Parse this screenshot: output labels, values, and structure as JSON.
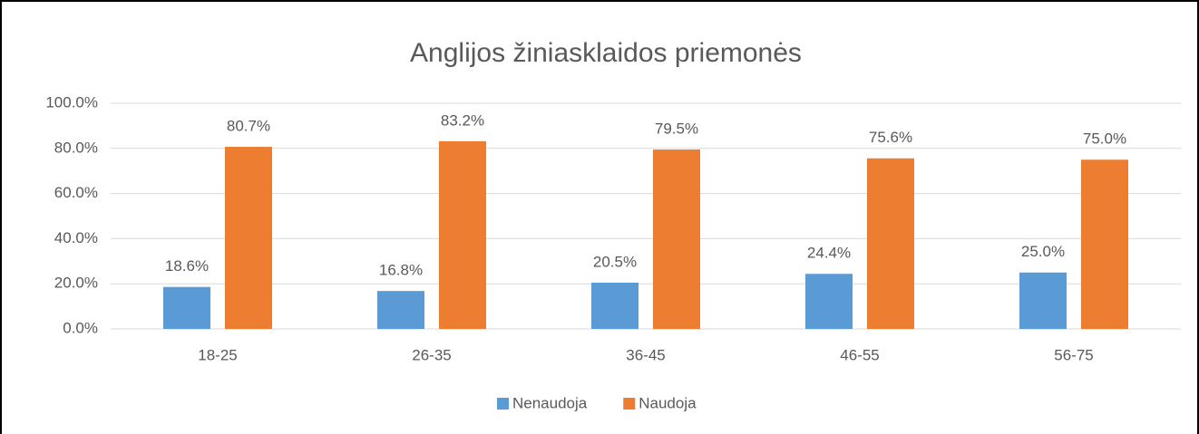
{
  "chart_data": {
    "type": "bar",
    "title": "Anglijos žiniasklaidos priemonės",
    "categories": [
      "18-25",
      "26-35",
      "36-45",
      "46-55",
      "56-75"
    ],
    "series": [
      {
        "name": "Nenaudoja",
        "color": "#5b9bd5",
        "values": [
          18.6,
          16.8,
          20.5,
          24.4,
          25.0
        ],
        "value_labels": [
          "18.6%",
          "16.8%",
          "20.5%",
          "24.4%",
          "25.0%"
        ]
      },
      {
        "name": "Naudoja",
        "color": "#ed7d31",
        "values": [
          80.7,
          83.2,
          79.5,
          75.6,
          75.0
        ],
        "value_labels": [
          "80.7%",
          "83.2%",
          "79.5%",
          "75.6%",
          "75.0%"
        ]
      }
    ],
    "ylim": [
      0,
      100
    ],
    "yticks": [
      {
        "value": 0,
        "label": "0.0%"
      },
      {
        "value": 20,
        "label": "20.0%"
      },
      {
        "value": 40,
        "label": "40.0%"
      },
      {
        "value": 60,
        "label": "60.0%"
      },
      {
        "value": 80,
        "label": "80.0%"
      },
      {
        "value": 100,
        "label": "100.0%"
      }
    ],
    "grid": true,
    "legend": "bottom"
  }
}
